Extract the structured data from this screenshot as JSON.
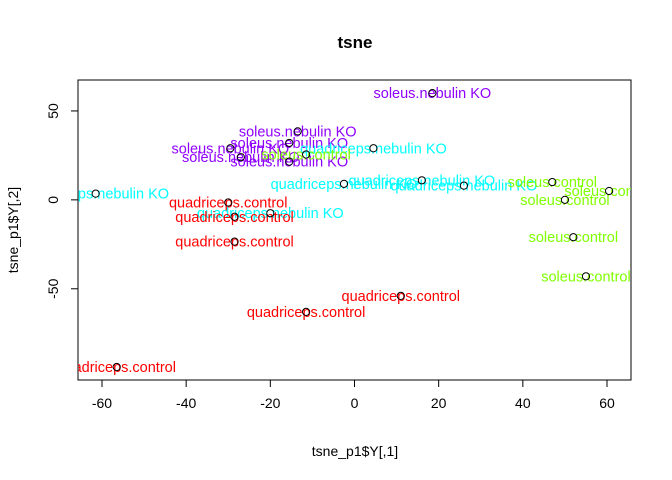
{
  "chart_data": {
    "type": "scatter",
    "title": "tsne",
    "xlabel": "tsne_p1$Y[,1]",
    "ylabel": "tsne_p1$Y[,2]",
    "xlim": [
      -65.7,
      65.7
    ],
    "ylim": [
      -101.3,
      67.4
    ],
    "xticks": [
      -60,
      -40,
      -20,
      0,
      20,
      40,
      60
    ],
    "yticks": [
      -50,
      0,
      50
    ],
    "grid": false,
    "legend": "none",
    "colors": {
      "soleus.nebulin KO": "#8f00ff",
      "quadriceps.nebulin KO": "#00ffff",
      "quadriceps.control": "#ff0000",
      "soleus.control": "#80ff00"
    },
    "points": [
      {
        "x": 18.5,
        "y": 60.0,
        "label": "soleus.nebulin KO"
      },
      {
        "x": -13.5,
        "y": 38.5,
        "label": "soleus.nebulin KO"
      },
      {
        "x": -15.5,
        "y": 32.0,
        "label": "soleus.nebulin KO"
      },
      {
        "x": -29.5,
        "y": 29.0,
        "label": "soleus.nebulin KO"
      },
      {
        "x": -27.0,
        "y": 24.0,
        "label": "soleus.nebulin KO"
      },
      {
        "x": -15.5,
        "y": 21.5,
        "label": "soleus.nebulin KO"
      },
      {
        "x": 4.5,
        "y": 29.0,
        "label": "quadriceps.nebulin KO"
      },
      {
        "x": -2.5,
        "y": 9.0,
        "label": "quadriceps.nebulin KO"
      },
      {
        "x": 16.0,
        "y": 11.0,
        "label": "quadriceps.nebulin KO"
      },
      {
        "x": 26.0,
        "y": 8.0,
        "label": "quadriceps.nebulin KO"
      },
      {
        "x": -61.5,
        "y": 3.5,
        "label": "quadriceps.nebulin KO"
      },
      {
        "x": -20.0,
        "y": -7.5,
        "label": "quadriceps.nebulin KO"
      },
      {
        "x": -30.0,
        "y": -1.5,
        "label": "quadriceps.control"
      },
      {
        "x": -28.5,
        "y": -9.5,
        "label": "quadriceps.control"
      },
      {
        "x": -28.5,
        "y": -23.5,
        "label": "quadriceps.control"
      },
      {
        "x": 11.0,
        "y": -54.0,
        "label": "quadriceps.control"
      },
      {
        "x": -11.5,
        "y": -63.0,
        "label": "quadriceps.control"
      },
      {
        "x": -56.5,
        "y": -94.0,
        "label": "quadriceps.control"
      },
      {
        "x": -11.5,
        "y": 25.5,
        "label": "soleus.control"
      },
      {
        "x": 47.0,
        "y": 10.0,
        "label": "soleus.control"
      },
      {
        "x": 60.5,
        "y": 5.0,
        "label": "soleus.control"
      },
      {
        "x": 50.0,
        "y": 0.0,
        "label": "soleus.control"
      },
      {
        "x": 52.0,
        "y": -21.0,
        "label": "soleus.control"
      },
      {
        "x": 55.0,
        "y": -43.0,
        "label": "soleus.control"
      }
    ]
  }
}
